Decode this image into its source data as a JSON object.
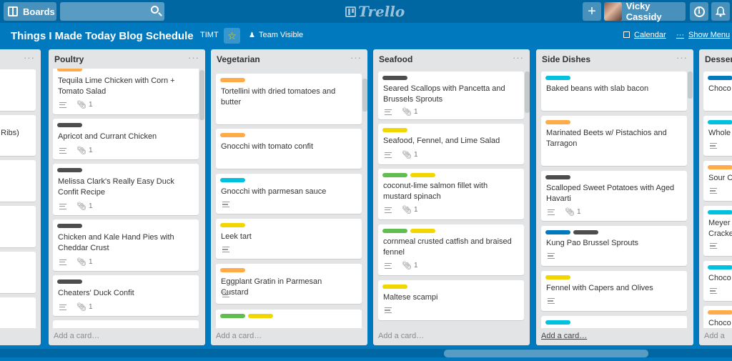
{
  "topbar": {
    "boards_label": "Boards",
    "search_placeholder": "",
    "logo_text": "Trello",
    "plus_label": "+",
    "user_name": "Vicky Cassidy",
    "info_label": "i"
  },
  "board": {
    "title": "Things I Made Today Blog Schedule",
    "team_badge": "TIMT",
    "visibility": "Team Visible",
    "calendar_label": "Calendar",
    "show_menu_label": "Show Menu",
    "menu_dots": "···"
  },
  "colors": {
    "board_bg": "#0079bf",
    "label_orange": "#ffab4a",
    "label_dark": "#4d4d4d",
    "label_blue": "#00c2e0",
    "label_yellow": "#f2d600",
    "label_green": "#61bd4f",
    "label_navy": "#0079bf"
  },
  "lists": [
    {
      "name": "",
      "cards": [
        {
          "title": ""
        },
        {
          "title": "b Ribs)"
        },
        {
          "title": ""
        },
        {
          "title": ""
        },
        {
          "title": ""
        },
        {
          "title": ""
        }
      ]
    },
    {
      "name": "Poultry",
      "add_card": "Add a card…",
      "cards": [
        {
          "labels": [
            "#ffab4a"
          ],
          "title": "Tequila Lime Chicken with Corn + Tomato Salad",
          "attachments": "1"
        },
        {
          "labels": [
            "#4d4d4d"
          ],
          "title": "Apricot and Currant Chicken",
          "attachments": "1"
        },
        {
          "labels": [
            "#4d4d4d"
          ],
          "title": "Melissa Clark's Really Easy Duck Confit Recipe",
          "attachments": "1"
        },
        {
          "labels": [
            "#4d4d4d"
          ],
          "title": "Chicken and Kale Hand Pies with Cheddar Crust",
          "attachments": "1"
        },
        {
          "labels": [
            "#4d4d4d"
          ],
          "title": "Cheaters' Duck Confit",
          "attachments": "1"
        }
      ]
    },
    {
      "name": "Vegetarian",
      "add_card": "Add a card…",
      "cards": [
        {
          "labels": [
            "#ffab4a"
          ],
          "title": "Tortellini with dried tomatoes and butter"
        },
        {
          "labels": [
            "#ffab4a"
          ],
          "title": "Gnocchi with tomato confit"
        },
        {
          "labels": [
            "#00c2e0"
          ],
          "title": "Gnocchi with parmesan sauce"
        },
        {
          "labels": [
            "#f2d600"
          ],
          "title": "Leek tart"
        },
        {
          "labels": [
            "#ffab4a"
          ],
          "title": "Eggplant Gratin in Parmesan Custard"
        },
        {
          "labels": [
            "#61bd4f",
            "#f2d600"
          ],
          "title": ""
        }
      ]
    },
    {
      "name": "Seafood",
      "add_card": "Add a card…",
      "cards": [
        {
          "labels": [
            "#4d4d4d"
          ],
          "title": "Seared Scallops with Pancetta and Brussels Sprouts",
          "attachments": "1"
        },
        {
          "labels": [
            "#f2d600"
          ],
          "title": "Seafood, Fennel, and Lime Salad",
          "attachments": "1"
        },
        {
          "labels": [
            "#61bd4f",
            "#f2d600"
          ],
          "title": "coconut-lime salmon fillet with mustard spinach",
          "attachments": "1"
        },
        {
          "labels": [
            "#61bd4f",
            "#f2d600"
          ],
          "title": "cornmeal crusted catfish and braised fennel",
          "attachments": "1"
        },
        {
          "labels": [
            "#f2d600"
          ],
          "title": "Maltese scampi"
        }
      ]
    },
    {
      "name": "Side Dishes",
      "add_card": "Add a card…",
      "cards": [
        {
          "labels": [
            "#00c2e0"
          ],
          "title": "Baked beans with slab bacon"
        },
        {
          "labels": [
            "#ffab4a"
          ],
          "title": "Marinated Beets w/ Pistachios and Tarragon"
        },
        {
          "labels": [
            "#4d4d4d"
          ],
          "title": "Scalloped Sweet Potatoes with Aged Havarti",
          "attachments": "1"
        },
        {
          "labels": [
            "#0079bf",
            "#4d4d4d"
          ],
          "title": "Kung Pao Brussel Sprouts"
        },
        {
          "labels": [
            "#f2d600"
          ],
          "title": "Fennel with Capers and Olives"
        },
        {
          "labels": [
            "#00c2e0"
          ],
          "title": ""
        }
      ]
    },
    {
      "name": "Desser",
      "add_card": "Add a",
      "cards": [
        {
          "labels": [
            "#0079bf"
          ],
          "title": "Choco"
        },
        {
          "labels": [
            "#00c2e0"
          ],
          "title": "Whole"
        },
        {
          "labels": [
            "#ffab4a"
          ],
          "title": "Sour C"
        },
        {
          "labels": [
            "#00c2e0"
          ],
          "title": "Meyer Cracke"
        },
        {
          "labels": [
            "#00c2e0"
          ],
          "title": "Choco"
        },
        {
          "labels": [
            "#ffab4a"
          ],
          "title": "Choco"
        }
      ]
    }
  ]
}
